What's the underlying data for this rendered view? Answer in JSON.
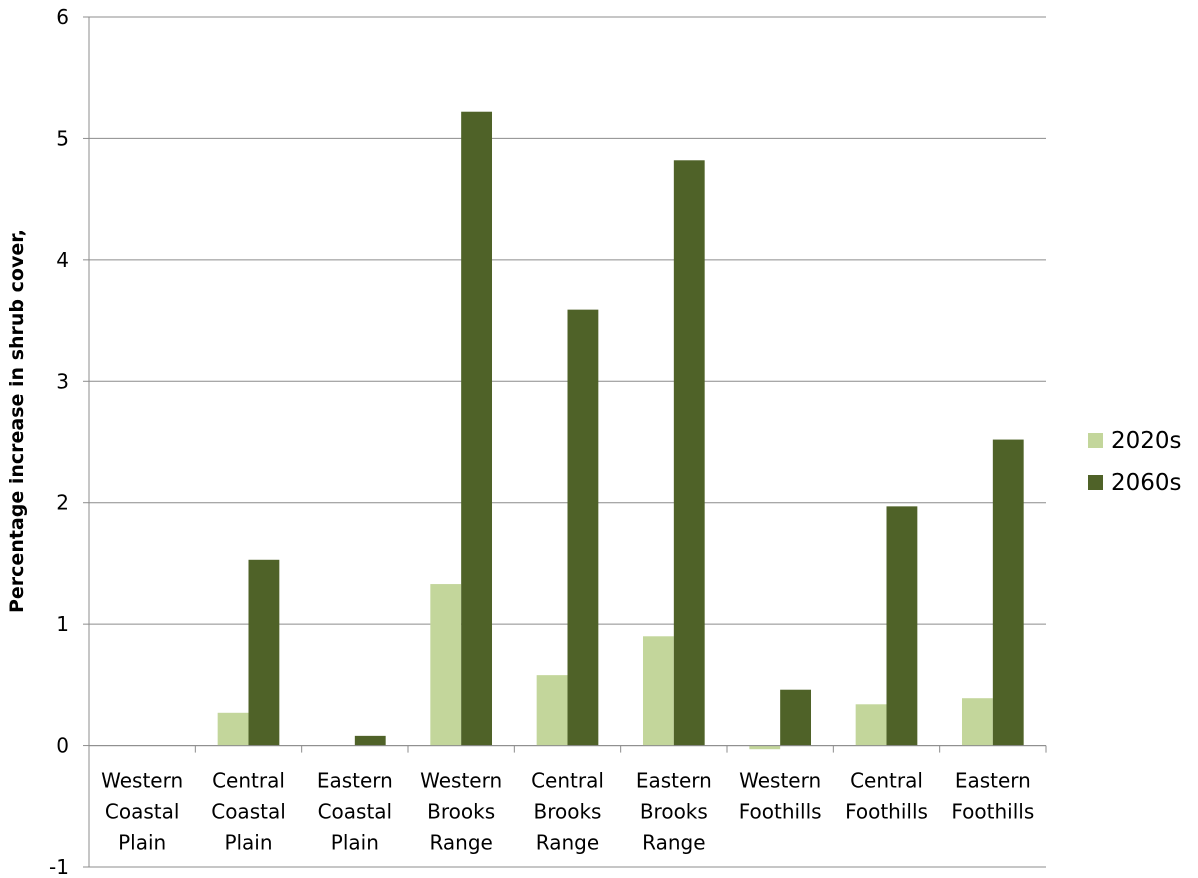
{
  "chart_data": {
    "type": "bar",
    "title": "",
    "xlabel": "",
    "ylabel": "Percentage increase in shrub cover,",
    "ylim": [
      -1,
      6
    ],
    "yticks": [
      -1,
      0,
      1,
      2,
      3,
      4,
      5,
      6
    ],
    "grid": true,
    "legend_position": "right",
    "categories": [
      [
        "Western",
        "Coastal",
        "Plain"
      ],
      [
        "Central",
        "Coastal",
        "Plain"
      ],
      [
        "Eastern",
        "Coastal",
        "Plain"
      ],
      [
        "Western",
        "Brooks",
        "Range"
      ],
      [
        "Central",
        "Brooks",
        "Range"
      ],
      [
        "Eastern",
        "Brooks",
        "Range"
      ],
      [
        "Western",
        "Foothills"
      ],
      [
        "Central",
        "Foothills"
      ],
      [
        "Eastern",
        "Foothills"
      ]
    ],
    "series": [
      {
        "name": "2020s",
        "color": "#c3d69b",
        "values": [
          0,
          0.27,
          0,
          1.33,
          0.58,
          0.9,
          -0.03,
          0.34,
          0.39
        ]
      },
      {
        "name": "2060s",
        "color": "#4f6228",
        "values": [
          0,
          1.53,
          0.08,
          5.22,
          3.59,
          4.82,
          0.46,
          1.97,
          2.52
        ]
      }
    ]
  }
}
